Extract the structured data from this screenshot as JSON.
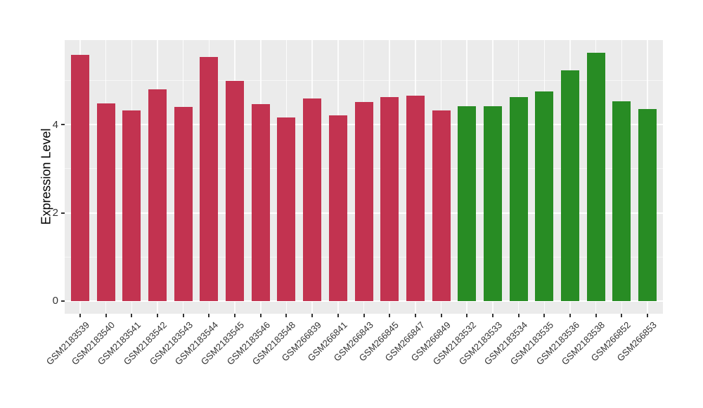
{
  "chart_data": {
    "type": "bar",
    "title": "",
    "xlabel": "",
    "ylabel": "Expression Level",
    "yticks": [
      0,
      2,
      4
    ],
    "yticks_minor": [
      1,
      3,
      5
    ],
    "ylim": [
      -0.29,
      5.92
    ],
    "grid": true,
    "panel_background": "#EBEBEB",
    "grid_color": "#FFFFFF",
    "tick_color": "#333333",
    "group_colors": [
      "#C23350",
      "#288C24"
    ],
    "categories": [
      "GSM2183539",
      "GSM2183540",
      "GSM2183541",
      "GSM2183542",
      "GSM2183543",
      "GSM2183544",
      "GSM2183545",
      "GSM2183546",
      "GSM2183548",
      "GSM266839",
      "GSM266841",
      "GSM266843",
      "GSM266845",
      "GSM266847",
      "GSM266849",
      "GSM2183532",
      "GSM2183533",
      "GSM2183534",
      "GSM2183535",
      "GSM2183536",
      "GSM2183538",
      "GSM266852",
      "GSM266853"
    ],
    "values": [
      5.58,
      4.49,
      4.32,
      4.8,
      4.41,
      5.53,
      5.0,
      4.46,
      4.17,
      4.59,
      4.21,
      4.51,
      4.62,
      4.66,
      4.32,
      4.42,
      4.42,
      4.62,
      4.75,
      5.23,
      5.64,
      4.53,
      4.35
    ],
    "bar_colors": [
      "#C23350",
      "#C23350",
      "#C23350",
      "#C23350",
      "#C23350",
      "#C23350",
      "#C23350",
      "#C23350",
      "#C23350",
      "#C23350",
      "#C23350",
      "#C23350",
      "#C23350",
      "#C23350",
      "#C23350",
      "#288C24",
      "#288C24",
      "#288C24",
      "#288C24",
      "#288C24",
      "#288C24",
      "#288C24",
      "#288C24"
    ]
  }
}
